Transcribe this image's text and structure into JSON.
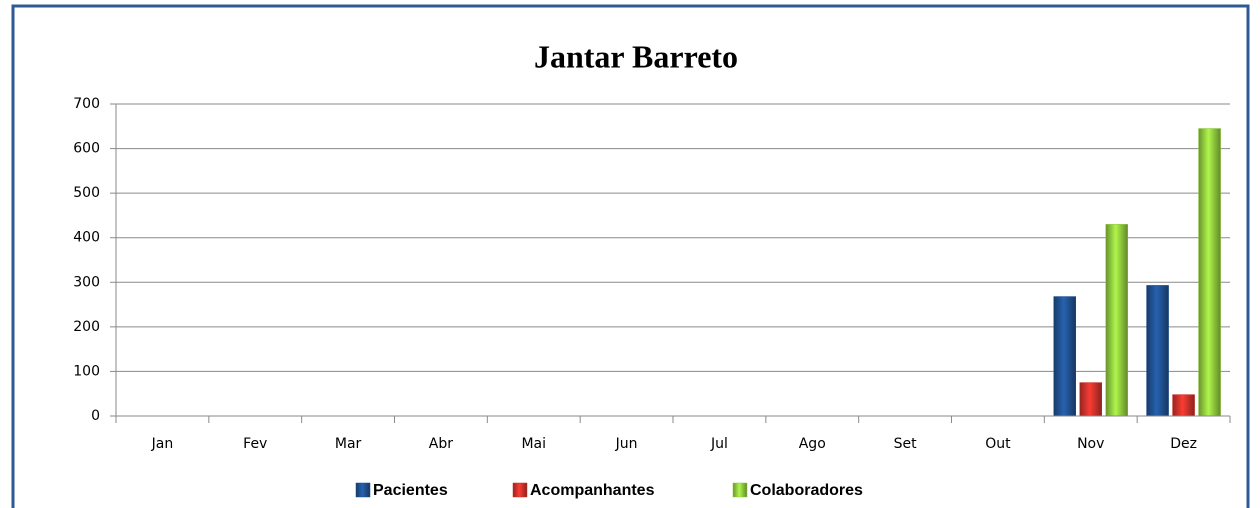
{
  "chart_data": {
    "type": "bar",
    "title": "Jantar Barreto",
    "categories": [
      "Jan",
      "Fev",
      "Mar",
      "Abr",
      "Mai",
      "Jun",
      "Jul",
      "Ago",
      "Set",
      "Out",
      "Nov",
      "Dez"
    ],
    "series": [
      {
        "name": "Pacientes",
        "color": "#1f4e8c",
        "values": [
          null,
          null,
          null,
          null,
          null,
          null,
          null,
          null,
          null,
          null,
          268,
          293
        ]
      },
      {
        "name": "Acompanhantes",
        "color": "#c8302a",
        "values": [
          null,
          null,
          null,
          null,
          null,
          null,
          null,
          null,
          null,
          null,
          75,
          48
        ]
      },
      {
        "name": "Colaboradores",
        "color": "#8cc43c",
        "values": [
          null,
          null,
          null,
          null,
          null,
          null,
          null,
          null,
          null,
          null,
          430,
          645
        ]
      }
    ],
    "ylim": [
      0,
      700
    ],
    "yticks": [
      0,
      100,
      200,
      300,
      400,
      500,
      600,
      700
    ],
    "grid": true,
    "legend": "bottom"
  }
}
